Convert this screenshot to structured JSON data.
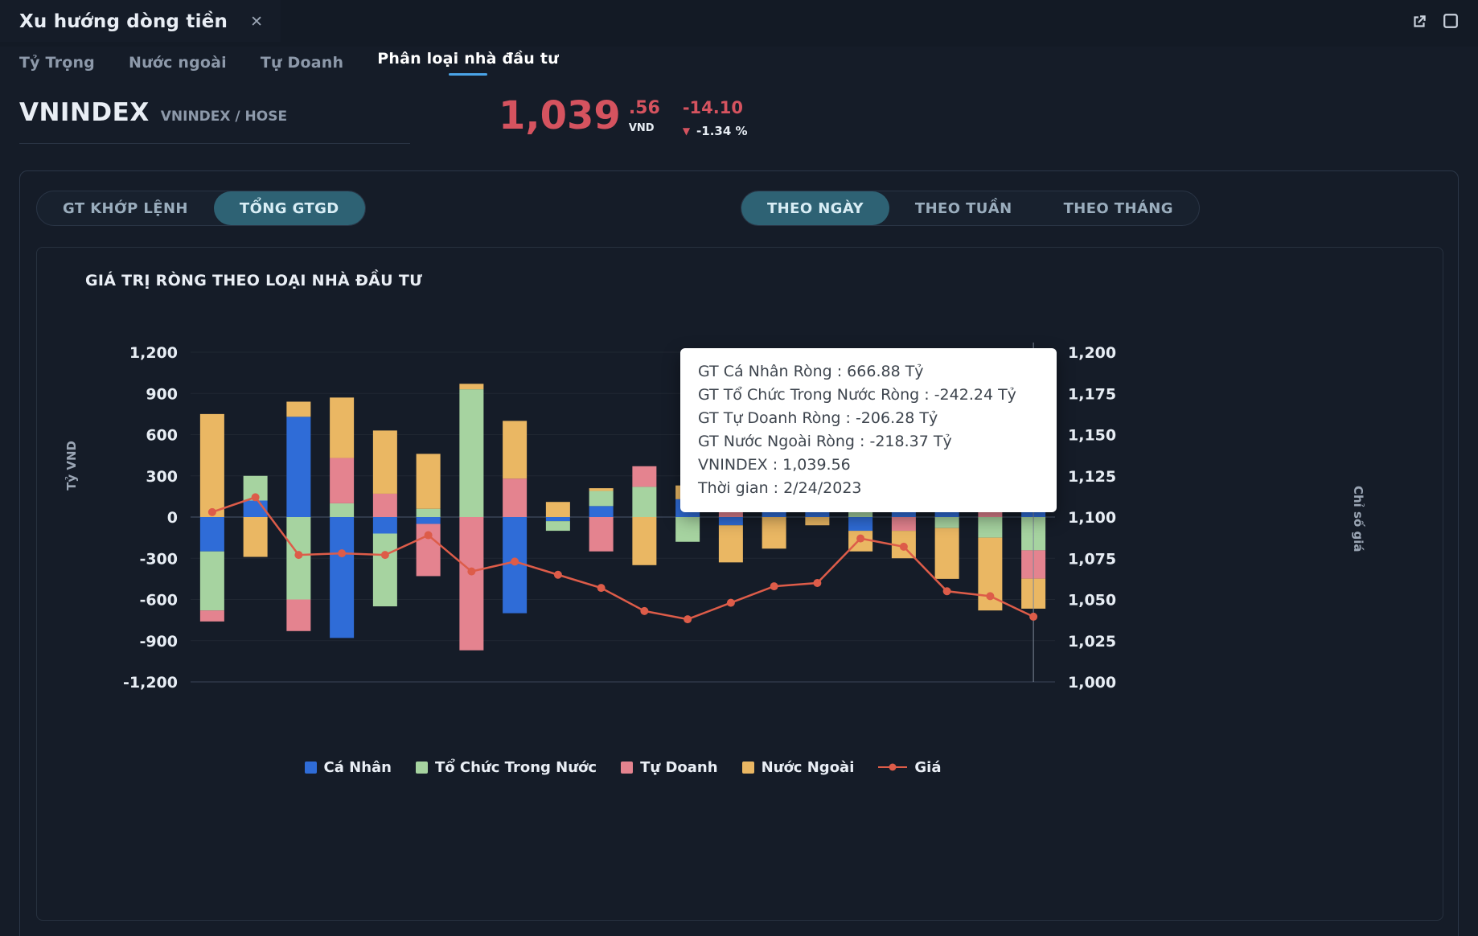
{
  "window": {
    "title": "Xu hướng dòng tiền"
  },
  "icons": {
    "close": "✕",
    "price_down_triangle": "▼"
  },
  "tabs": [
    {
      "label": "Tỷ Trọng",
      "active": false
    },
    {
      "label": "Nước ngoài",
      "active": false
    },
    {
      "label": "Tự Doanh",
      "active": false
    },
    {
      "label": "Phân loại nhà đầu tư",
      "active": true
    }
  ],
  "ticker": {
    "symbol": "VNINDEX",
    "pair": "VNINDEX / HOSE",
    "price_int": "1,039",
    "price_dec": ".56",
    "currency": "VND",
    "change": "-14.10",
    "change_pct": "-1.34 %"
  },
  "toolbar": {
    "value_type": [
      {
        "label": "GT KHỚP LỆNH",
        "selected": false
      },
      {
        "label": "TỔNG GTGD",
        "selected": true
      }
    ],
    "period": [
      {
        "label": "THEO NGÀY",
        "selected": true
      },
      {
        "label": "THEO TUẦN",
        "selected": false
      },
      {
        "label": "THEO THÁNG",
        "selected": false
      }
    ]
  },
  "chart_data": {
    "type": "bar",
    "subtype": "stacked-bar-with-line",
    "title": "GIÁ TRỊ RÒNG THEO LOẠI NHÀ ĐẦU TƯ",
    "ylabel_left": "Tỷ VND",
    "ylabel_right": "Chỉ số giá",
    "ylim_left": [
      -1200,
      1200
    ],
    "yticks_left": [
      -1200,
      -900,
      -600,
      -300,
      0,
      300,
      600,
      900,
      1200
    ],
    "ylim_right": [
      1000,
      1200
    ],
    "yticks_right": [
      1000,
      1025,
      1050,
      1075,
      1100,
      1125,
      1150,
      1175,
      1200
    ],
    "grid": "zero-and-baseline",
    "legend_position": "bottom-center",
    "hover_index": 19,
    "series": [
      {
        "name": "Cá Nhân",
        "type": "bar",
        "color": "#2f6cd7",
        "values": [
          -250,
          120,
          730,
          -880,
          -120,
          -50,
          0,
          -700,
          -30,
          80,
          0,
          130,
          -60,
          120,
          40,
          -100,
          80,
          60,
          0,
          666.88
        ]
      },
      {
        "name": "Tổ Chức Trong Nước",
        "type": "bar",
        "color": "#a6d3a0",
        "values": [
          -430,
          180,
          -600,
          100,
          -530,
          60,
          930,
          0,
          -70,
          110,
          220,
          -180,
          0,
          60,
          100,
          50,
          0,
          -80,
          -150,
          -242.24
        ]
      },
      {
        "name": "Tự Doanh",
        "type": "bar",
        "color": "#e4838f",
        "values": [
          -80,
          0,
          -230,
          330,
          170,
          -380,
          -970,
          280,
          0,
          -250,
          150,
          0,
          150,
          0,
          0,
          80,
          -100,
          0,
          300,
          -206.28
        ]
      },
      {
        "name": "Nước Ngoài",
        "type": "bar",
        "color": "#eab763",
        "values": [
          750,
          -290,
          110,
          440,
          460,
          400,
          40,
          420,
          110,
          20,
          -350,
          100,
          -270,
          -230,
          -60,
          -150,
          -200,
          -370,
          -530,
          -218.37
        ]
      },
      {
        "name": "Giá",
        "type": "line",
        "axis": "right",
        "color": "#dd5c49",
        "values": [
          1103,
          1112,
          1077,
          1078,
          1077,
          1089,
          1067,
          1073,
          1065,
          1057,
          1043,
          1038,
          1048,
          1058,
          1060,
          1087,
          1082,
          1055,
          1052,
          1039.56
        ]
      }
    ],
    "tooltip": {
      "lines": [
        "GT Cá Nhân Ròng  : 666.88 Tỷ",
        "GT Tổ Chức Trong Nước Ròng : -242.24 Tỷ",
        "GT Tự Doanh Ròng : -206.28 Tỷ",
        "GT Nước Ngoài Ròng : -218.37 Tỷ",
        "VNINDEX : 1,039.56",
        "Thời gian : 2/24/2023"
      ]
    }
  }
}
